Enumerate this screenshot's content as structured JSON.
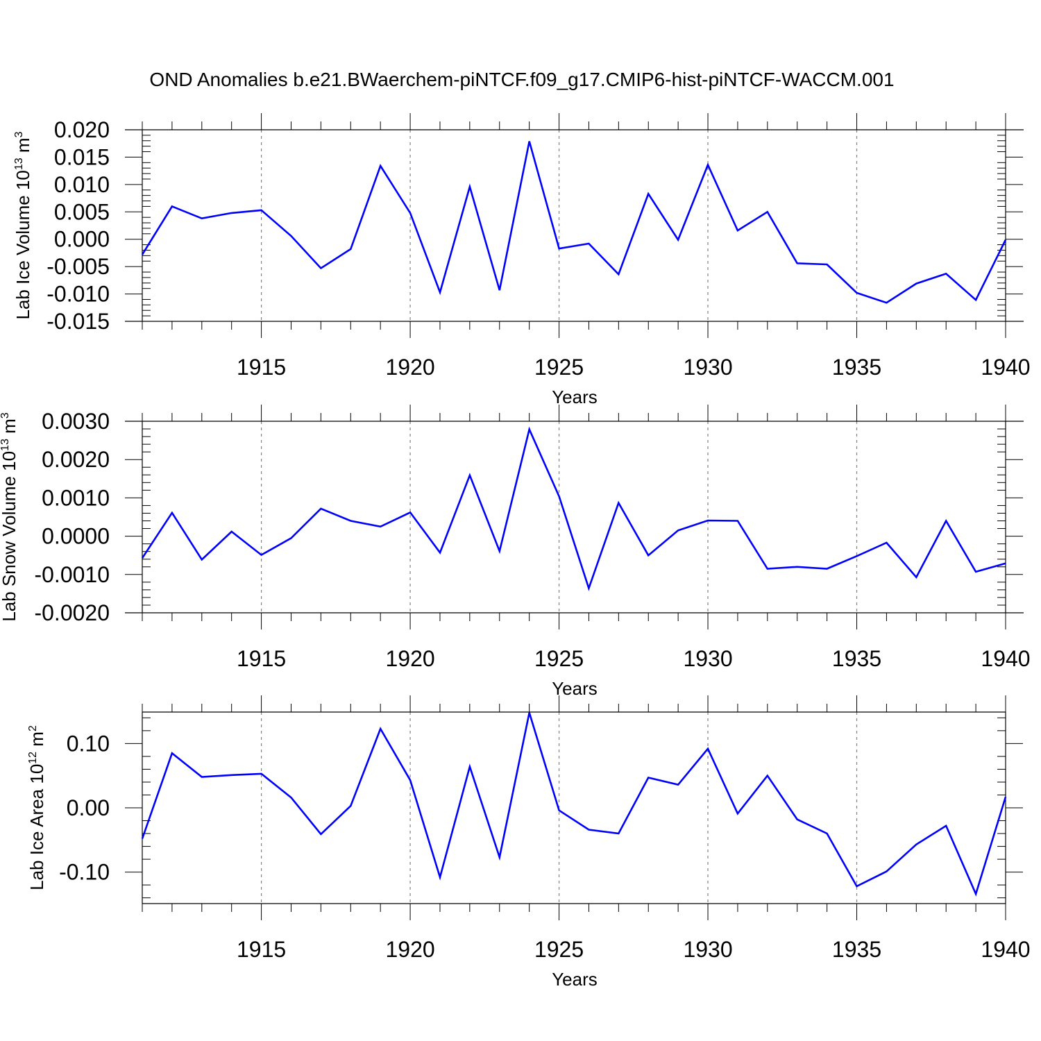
{
  "title": "OND Anomalies b.e21.BWaerchem-piNTCF.f09_g17.CMIP6-hist-piNTCF-WACCM.001",
  "colors": {
    "series": "#0000ff",
    "grid": "#808080",
    "axis": "#000000"
  },
  "chart_data": [
    {
      "type": "line",
      "ylabel_parts": {
        "text": "Lab Ice Volume 10",
        "exp1": "13",
        "unit": " m",
        "exp2": "3"
      },
      "xlabel": "Years",
      "x": [
        1911,
        1912,
        1913,
        1914,
        1915,
        1916,
        1917,
        1918,
        1919,
        1920,
        1921,
        1922,
        1923,
        1924,
        1925,
        1926,
        1927,
        1928,
        1929,
        1930,
        1931,
        1932,
        1933,
        1934,
        1935,
        1936,
        1937,
        1938,
        1939,
        1940
      ],
      "values": [
        -0.0028,
        0.006,
        0.0038,
        0.0048,
        0.0053,
        0.0006,
        -0.0053,
        -0.0018,
        0.0134,
        0.0048,
        -0.0097,
        0.0096,
        -0.0093,
        0.0179,
        -0.0017,
        -0.0008,
        -0.0064,
        0.0083,
        -0.0001,
        0.0136,
        0.0016,
        0.005,
        -0.0044,
        -0.0046,
        -0.0098,
        -0.0116,
        -0.0081,
        -0.0063,
        -0.0111,
        -0.0001
      ],
      "xlim": [
        1911,
        1940
      ],
      "ylim": [
        -0.015,
        0.02
      ],
      "yticks": [
        -0.015,
        -0.01,
        -0.005,
        0.0,
        0.005,
        0.01,
        0.015,
        0.02
      ],
      "ytick_labels": [
        "-0.015",
        "-0.010",
        "-0.005",
        "0.000",
        "0.005",
        "0.010",
        "0.015",
        "0.020"
      ],
      "ymajor": 0.005,
      "xticks": [
        1915,
        1920,
        1925,
        1930,
        1935,
        1940
      ],
      "xtick_labels": [
        "1915",
        "1920",
        "1925",
        "1930",
        "1935",
        "1940"
      ],
      "grid": "vertical dashed at major x ticks"
    },
    {
      "type": "line",
      "ylabel_parts": {
        "text": "Lab Snow Volume 10",
        "exp1": "13",
        "unit": " m",
        "exp2": "3"
      },
      "xlabel": "Years",
      "x": [
        1911,
        1912,
        1913,
        1914,
        1915,
        1916,
        1917,
        1918,
        1919,
        1920,
        1921,
        1922,
        1923,
        1924,
        1925,
        1926,
        1927,
        1928,
        1929,
        1930,
        1931,
        1932,
        1933,
        1934,
        1935,
        1936,
        1937,
        1938,
        1939,
        1940
      ],
      "values": [
        -0.00057,
        0.00061,
        -0.00061,
        0.00012,
        -0.00049,
        -5e-05,
        0.00072,
        0.0004,
        0.00025,
        0.00062,
        -0.00043,
        0.00159,
        -0.00039,
        0.00279,
        0.00104,
        -0.00136,
        0.00087,
        -0.0005,
        0.00015,
        0.00041,
        0.0004,
        -0.00085,
        -0.0008,
        -0.00085,
        -0.00052,
        -0.00017,
        -0.00107,
        0.0004,
        -0.00093,
        -0.00071
      ],
      "xlim": [
        1911,
        1940
      ],
      "ylim": [
        -0.002,
        0.003
      ],
      "yticks": [
        -0.002,
        -0.001,
        0.0,
        0.001,
        0.002,
        0.003
      ],
      "ytick_labels": [
        "-0.0020",
        "-0.0010",
        "0.0000",
        "0.0010",
        "0.0020",
        "0.0030"
      ],
      "ymajor": 0.001,
      "xticks": [
        1915,
        1920,
        1925,
        1930,
        1935,
        1940
      ],
      "xtick_labels": [
        "1915",
        "1920",
        "1925",
        "1930",
        "1935",
        "1940"
      ],
      "grid": "vertical dashed at major x ticks"
    },
    {
      "type": "line",
      "ylabel_parts": {
        "text": "Lab Ice Area 10",
        "exp1": "12",
        "unit": " m",
        "exp2": "2"
      },
      "xlabel": "Years",
      "x": [
        1911,
        1912,
        1913,
        1914,
        1915,
        1916,
        1917,
        1918,
        1919,
        1920,
        1921,
        1922,
        1923,
        1924,
        1925,
        1926,
        1927,
        1928,
        1929,
        1930,
        1931,
        1932,
        1933,
        1934,
        1935,
        1936,
        1937,
        1938,
        1939,
        1940
      ],
      "values": [
        -0.048,
        0.085,
        0.048,
        0.051,
        0.053,
        0.016,
        -0.041,
        0.003,
        0.123,
        0.043,
        -0.108,
        0.064,
        -0.077,
        0.148,
        -0.004,
        -0.034,
        -0.04,
        0.047,
        0.036,
        0.092,
        -0.009,
        0.05,
        -0.018,
        -0.04,
        -0.122,
        -0.099,
        -0.057,
        -0.028,
        -0.134,
        0.017
      ],
      "xlim": [
        1911,
        1940
      ],
      "ylim": [
        -0.149,
        0.149
      ],
      "yticks": [
        -0.1,
        0.0,
        0.1
      ],
      "ytick_labels": [
        "-0.10",
        "0.00",
        "0.10"
      ],
      "ymajor": 0.1,
      "xticks": [
        1915,
        1920,
        1925,
        1930,
        1935,
        1940
      ],
      "xtick_labels": [
        "1915",
        "1920",
        "1925",
        "1930",
        "1935",
        "1940"
      ],
      "grid": "vertical dashed at major x ticks"
    }
  ]
}
